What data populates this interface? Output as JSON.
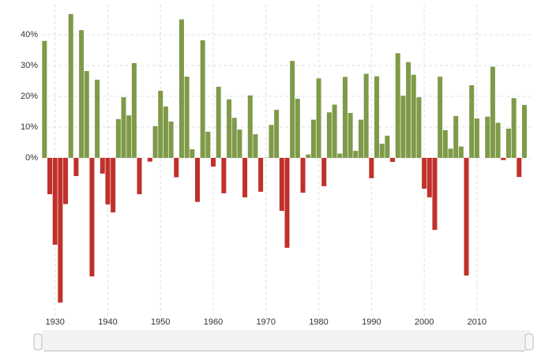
{
  "chart_data": {
    "type": "bar",
    "x": [
      1928,
      1929,
      1930,
      1931,
      1932,
      1933,
      1934,
      1935,
      1936,
      1937,
      1938,
      1939,
      1940,
      1941,
      1942,
      1943,
      1944,
      1945,
      1946,
      1947,
      1948,
      1949,
      1950,
      1951,
      1952,
      1953,
      1954,
      1955,
      1956,
      1957,
      1958,
      1959,
      1960,
      1961,
      1962,
      1963,
      1964,
      1965,
      1966,
      1967,
      1968,
      1969,
      1970,
      1971,
      1972,
      1973,
      1974,
      1975,
      1976,
      1977,
      1978,
      1979,
      1980,
      1981,
      1982,
      1983,
      1984,
      1985,
      1986,
      1987,
      1988,
      1989,
      1990,
      1991,
      1992,
      1993,
      1994,
      1995,
      1996,
      1997,
      1998,
      1999,
      2000,
      2001,
      2002,
      2003,
      2004,
      2005,
      2006,
      2007,
      2008,
      2009,
      2010,
      2011,
      2012,
      2013,
      2014,
      2015,
      2016,
      2017,
      2018,
      2019
    ],
    "values": [
      38,
      -11.8,
      -28.2,
      -47,
      -15,
      46.7,
      -5.9,
      41.5,
      28.2,
      -38.5,
      25.4,
      -5.1,
      -15.1,
      -17.7,
      12.6,
      19.7,
      13.8,
      30.8,
      -11.8,
      0,
      -1.2,
      10.3,
      21.8,
      16.7,
      11.8,
      -6.3,
      45,
      26.4,
      2.8,
      -14.3,
      38.2,
      8.5,
      -2.8,
      23.1,
      -11.5,
      19,
      13,
      9.2,
      -12.8,
      20.3,
      7.7,
      -11,
      0.1,
      10.7,
      15.6,
      -17.2,
      -29.2,
      31.5,
      19.2,
      -11.3,
      1.1,
      12.4,
      25.8,
      -9.2,
      14.8,
      17.3,
      1.4,
      26.3,
      14.6,
      2.3,
      12.4,
      27.3,
      -6.6,
      26.5,
      4.6,
      7.2,
      -1.3,
      34,
      20.2,
      31.1,
      27,
      19.7,
      -10,
      -12.8,
      -23.4,
      26.4,
      9,
      3,
      13.6,
      3.7,
      -38.2,
      23.6,
      12.8,
      0,
      13.4,
      29.6,
      11.4,
      -0.7,
      9.5,
      19.4,
      -6.2,
      17.2
    ],
    "color_positive": "#7f9a48",
    "color_negative": "#c1302b",
    "xlim": [
      1927.5,
      2020.2
    ],
    "xticks": [
      1930,
      1940,
      1950,
      1960,
      1970,
      1980,
      1990,
      2000,
      2010
    ],
    "ylim": [
      -51.3,
      50
    ],
    "yticks": [
      {
        "value": 0,
        "label": "0%"
      },
      {
        "value": 10,
        "label": "10%"
      },
      {
        "value": 20,
        "label": "20%"
      },
      {
        "value": 30,
        "label": "30%"
      },
      {
        "value": 40,
        "label": "40%"
      }
    ],
    "grid": true
  }
}
